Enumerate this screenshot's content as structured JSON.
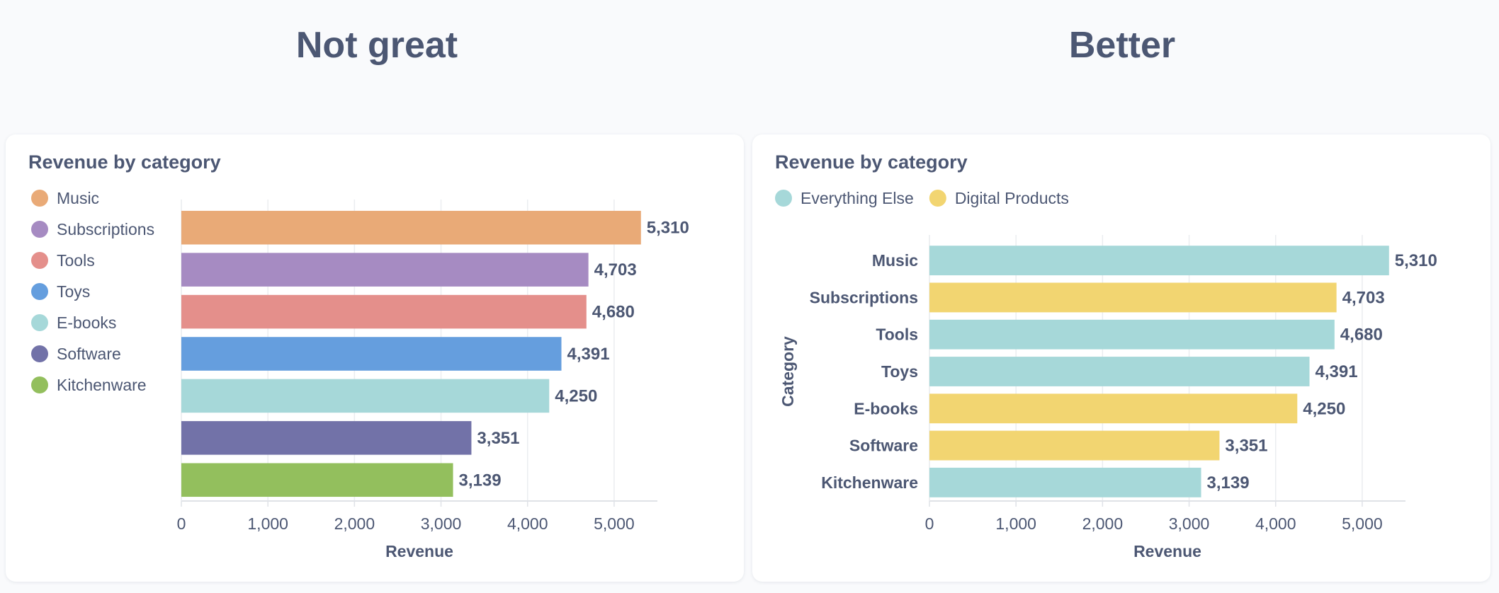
{
  "left": {
    "heading": "Not great",
    "chart_data": {
      "type": "bar",
      "orientation": "horizontal",
      "title": "Revenue by category",
      "xlabel": "Revenue",
      "ylabel": "",
      "xlim": [
        0,
        5500
      ],
      "xticks": [
        0,
        1000,
        2000,
        3000,
        4000,
        5000
      ],
      "xtick_labels": [
        "0",
        "1,000",
        "2,000",
        "3,000",
        "4,000",
        "5,000"
      ],
      "show_category_labels": false,
      "legend_position": "top-left-vertical",
      "categories": [
        "Music",
        "Subscriptions",
        "Tools",
        "Toys",
        "E-books",
        "Software",
        "Kitchenware"
      ],
      "values": [
        5310,
        4703,
        4680,
        4391,
        4250,
        3351,
        3139
      ],
      "value_labels": [
        "5,310",
        "4,703",
        "4,680",
        "4,391",
        "4,250",
        "3,351",
        "3,139"
      ],
      "colors": [
        "#e9aa77",
        "#a68bc2",
        "#e48f8b",
        "#659ede",
        "#a6d8d9",
        "#7272a8",
        "#93bf5d"
      ],
      "legend": [
        {
          "label": "Music",
          "color": "#e9aa77"
        },
        {
          "label": "Subscriptions",
          "color": "#a68bc2"
        },
        {
          "label": "Tools",
          "color": "#e48f8b"
        },
        {
          "label": "Toys",
          "color": "#659ede"
        },
        {
          "label": "E-books",
          "color": "#a6d8d9"
        },
        {
          "label": "Software",
          "color": "#7272a8"
        },
        {
          "label": "Kitchenware",
          "color": "#93bf5d"
        }
      ]
    }
  },
  "right": {
    "heading": "Better",
    "chart_data": {
      "type": "bar",
      "orientation": "horizontal",
      "title": "Revenue by category",
      "xlabel": "Revenue",
      "ylabel": "Category",
      "xlim": [
        0,
        5500
      ],
      "xticks": [
        0,
        1000,
        2000,
        3000,
        4000,
        5000
      ],
      "xtick_labels": [
        "0",
        "1,000",
        "2,000",
        "3,000",
        "4,000",
        "5,000"
      ],
      "show_category_labels": true,
      "legend_position": "top-left-horizontal",
      "categories": [
        "Music",
        "Subscriptions",
        "Tools",
        "Toys",
        "E-books",
        "Software",
        "Kitchenware"
      ],
      "values": [
        5310,
        4703,
        4680,
        4391,
        4250,
        3351,
        3139
      ],
      "value_labels": [
        "5,310",
        "4,703",
        "4,680",
        "4,391",
        "4,250",
        "3,351",
        "3,139"
      ],
      "groups": [
        "Everything Else",
        "Digital Products",
        "Everything Else",
        "Everything Else",
        "Digital Products",
        "Digital Products",
        "Everything Else"
      ],
      "colors": [
        "#a6d8d9",
        "#f2d571",
        "#a6d8d9",
        "#a6d8d9",
        "#f2d571",
        "#f2d571",
        "#a6d8d9"
      ],
      "legend": [
        {
          "label": "Everything Else",
          "color": "#a6d8d9"
        },
        {
          "label": "Digital Products",
          "color": "#f2d571"
        }
      ]
    }
  }
}
